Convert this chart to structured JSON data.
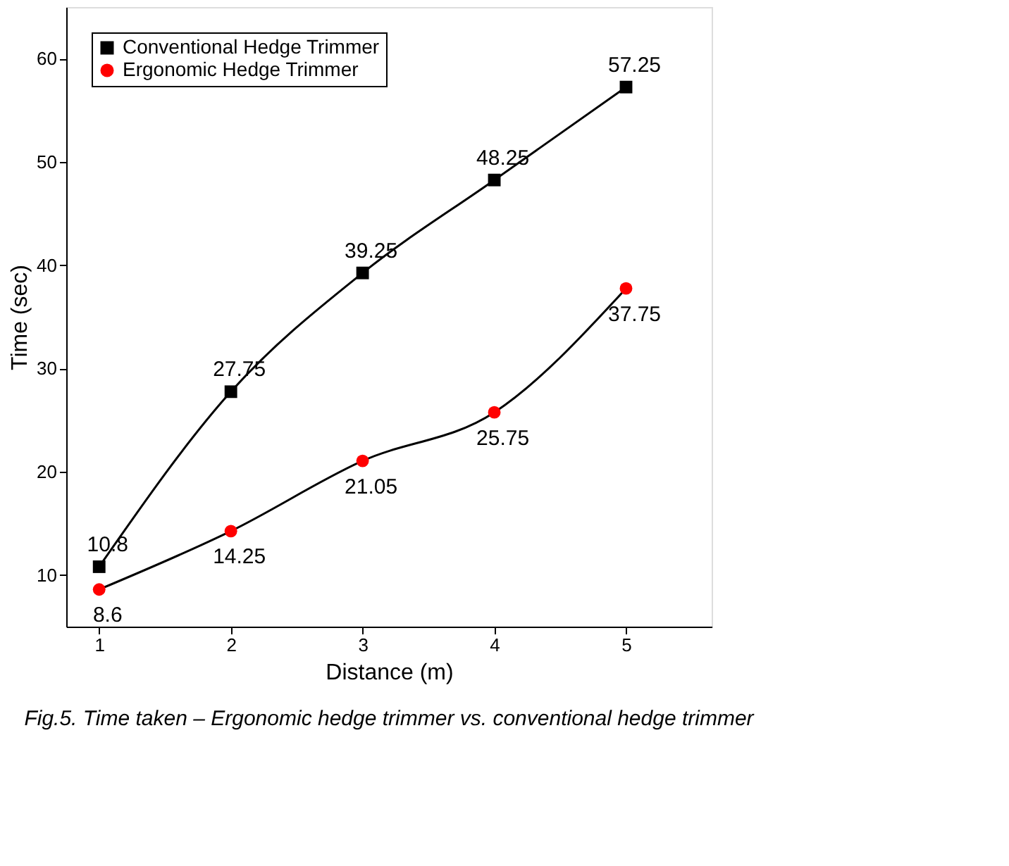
{
  "chart_data": {
    "type": "line",
    "xlabel": "Distance (m)",
    "ylabel": "Time (sec)",
    "x": [
      1,
      2,
      3,
      4,
      5
    ],
    "series": [
      {
        "name": "Conventional Hedge Trimmer",
        "color": "#000000",
        "marker": "square",
        "values": [
          10.8,
          27.75,
          39.25,
          48.25,
          57.25
        ]
      },
      {
        "name": "Ergonomic Hedge Trimmer",
        "color": "#ff0000",
        "marker": "circle",
        "values": [
          8.6,
          14.25,
          21.05,
          25.75,
          37.75
        ]
      }
    ],
    "xlim": [
      0.75,
      5.65
    ],
    "xticks": [
      1,
      2,
      3,
      4,
      5
    ],
    "ylim": [
      5,
      65
    ],
    "yticks": [
      10,
      20,
      30,
      40,
      50,
      60
    ],
    "grid": false,
    "legend": "top left",
    "data_labels": true,
    "annotations": [
      "Fig.5. Time taken – Ergonomic hedge trimmer vs. conventional hedge trimmer"
    ]
  }
}
